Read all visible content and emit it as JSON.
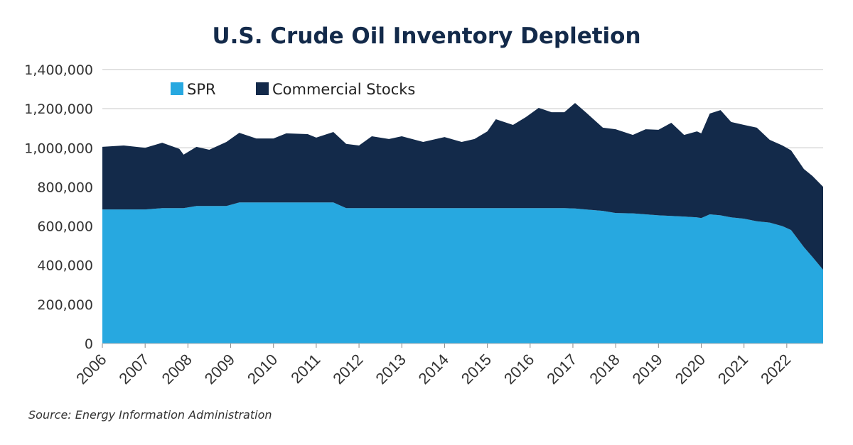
{
  "chart_data": {
    "type": "area",
    "stacked": true,
    "title": "U.S. Crude Oil Inventory Depletion",
    "source": "Source: Energy Information Administration",
    "xlabel": "",
    "ylabel": "",
    "xlim": [
      2006,
      2022.85
    ],
    "ylim": [
      0,
      1400000
    ],
    "grid": true,
    "legend_position": "top-left",
    "x_ticks": [
      "2006",
      "2007",
      "2008",
      "2009",
      "2010",
      "2011",
      "2012",
      "2013",
      "2014",
      "2015",
      "2016",
      "2017",
      "2018",
      "2019",
      "2020",
      "2021",
      "2022"
    ],
    "y_ticks": [
      "0",
      "200,000",
      "400,000",
      "600,000",
      "800,000",
      "1,000,000",
      "1,200,000",
      "1,400,000"
    ],
    "y_tick_values": [
      0,
      200000,
      400000,
      600000,
      800000,
      1000000,
      1200000,
      1400000
    ],
    "x": [
      2006.0,
      2006.5,
      2007.0,
      2007.4,
      2007.8,
      2007.9,
      2008.2,
      2008.5,
      2008.9,
      2009.2,
      2009.6,
      2010.0,
      2010.3,
      2010.8,
      2011.0,
      2011.4,
      2011.7,
      2012.0,
      2012.3,
      2012.7,
      2013.0,
      2013.5,
      2014.0,
      2014.4,
      2014.7,
      2015.0,
      2015.2,
      2015.6,
      2015.9,
      2016.2,
      2016.5,
      2016.8,
      2017.05,
      2017.3,
      2017.7,
      2018.0,
      2018.4,
      2018.7,
      2019.0,
      2019.3,
      2019.6,
      2019.9,
      2020.0,
      2020.2,
      2020.45,
      2020.7,
      2021.0,
      2021.3,
      2021.6,
      2021.9,
      2022.1,
      2022.4,
      2022.6,
      2022.85
    ],
    "series": [
      {
        "name": "SPR",
        "color": "#27a8e0",
        "values": [
          685000,
          685000,
          685000,
          692000,
          692000,
          692000,
          703000,
          703000,
          703000,
          721000,
          721000,
          721000,
          721000,
          721000,
          721000,
          721000,
          692000,
          692000,
          692000,
          692000,
          692000,
          692000,
          692000,
          692000,
          692000,
          692000,
          692000,
          692000,
          692000,
          692000,
          692000,
          692000,
          690000,
          685000,
          678000,
          667000,
          665000,
          660000,
          655000,
          652000,
          649000,
          645000,
          641000,
          660000,
          655000,
          645000,
          638000,
          625000,
          618000,
          600000,
          580000,
          493000,
          442000,
          377000
        ]
      },
      {
        "name": "Commercial Stocks",
        "color": "#132a4a",
        "values": [
          320000,
          327000,
          315000,
          334000,
          303000,
          273000,
          302000,
          287000,
          327000,
          356000,
          327000,
          327000,
          353000,
          349000,
          331000,
          360000,
          328000,
          320000,
          367000,
          353000,
          367000,
          338000,
          363000,
          338000,
          353000,
          392000,
          454000,
          425000,
          465000,
          512000,
          490000,
          490000,
          539000,
          497000,
          425000,
          428000,
          401000,
          435000,
          437000,
          476000,
          417000,
          439000,
          433000,
          515000,
          538000,
          487000,
          479000,
          478000,
          423000,
          412000,
          407000,
          399000,
          414000,
          424000
        ]
      }
    ]
  }
}
